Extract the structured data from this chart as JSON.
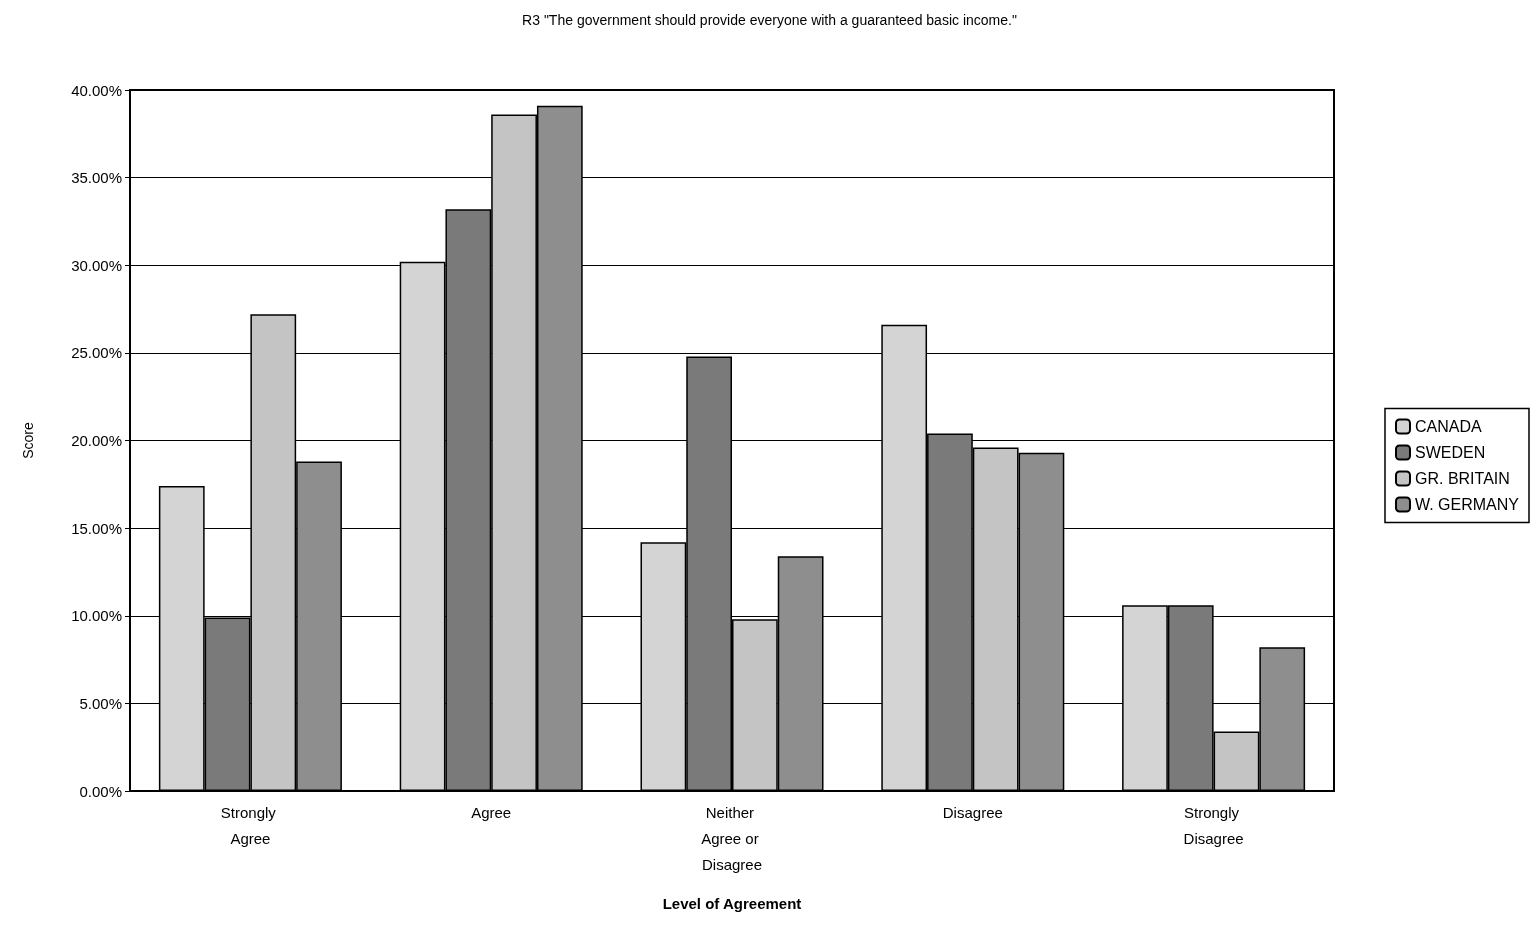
{
  "chart_data": {
    "type": "bar",
    "title": "R3 \"The government should provide everyone with a guaranteed basic income.\"",
    "xlabel": "Level of Agreement",
    "ylabel": "Score",
    "categories": [
      "Strongly Agree",
      "Agree",
      "Neither Agree or Disagree",
      "Disagree",
      "Strongly Disagree"
    ],
    "series": [
      {
        "name": "CANADA",
        "color": "#d4d4d4",
        "values": [
          17.4,
          30.2,
          14.2,
          26.6,
          10.6
        ]
      },
      {
        "name": "SWEDEN",
        "color": "#7a7a7a",
        "values": [
          9.9,
          33.2,
          24.8,
          20.4,
          10.6
        ]
      },
      {
        "name": "GR. BRITAIN",
        "color": "#c4c4c4",
        "values": [
          27.2,
          38.6,
          9.8,
          19.6,
          3.4
        ]
      },
      {
        "name": "W. GERMANY",
        "color": "#8e8e8e",
        "values": [
          18.8,
          39.1,
          13.4,
          19.3,
          8.2
        ]
      }
    ],
    "ylim": [
      0,
      40
    ],
    "yticks": [
      {
        "value": 0,
        "label": "0.00%"
      },
      {
        "value": 5,
        "label": "5.00%"
      },
      {
        "value": 10,
        "label": "10.00%"
      },
      {
        "value": 15,
        "label": "15.00%"
      },
      {
        "value": 20,
        "label": "20.00%"
      },
      {
        "value": 25,
        "label": "25.00%"
      },
      {
        "value": 30,
        "label": "30.00%"
      },
      {
        "value": 35,
        "label": "35.00%"
      },
      {
        "value": 40,
        "label": "40.00%"
      }
    ],
    "grid": "y",
    "legend": "right"
  }
}
